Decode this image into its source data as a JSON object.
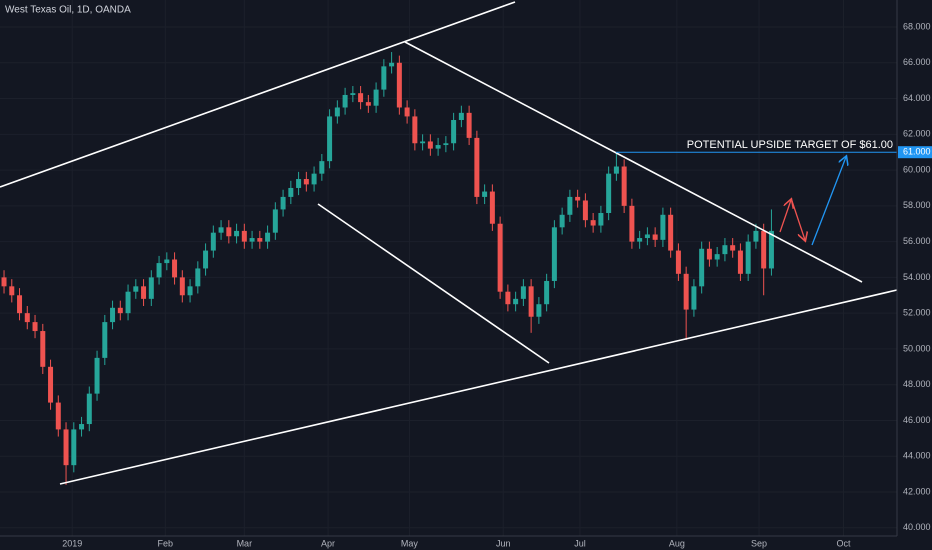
{
  "chart_data": {
    "type": "candlestick",
    "title": "West Texas Oil, 1D, OANDA",
    "up_color": "#26a69a",
    "down_color": "#ef5350",
    "grid": true,
    "categories": [
      null,
      null,
      null,
      null,
      null,
      null,
      null,
      null,
      null,
      null,
      null,
      null,
      null,
      null,
      null,
      null,
      null,
      null,
      null,
      null,
      null,
      null,
      null,
      null,
      null,
      null,
      null,
      null,
      null,
      null,
      null,
      null,
      null,
      null,
      null,
      null,
      null,
      null,
      null,
      null,
      null,
      null,
      null,
      null,
      null,
      null,
      null,
      null,
      null,
      null,
      null,
      null,
      null,
      null,
      null,
      null,
      null,
      null,
      null,
      null,
      null,
      null,
      null,
      null,
      null,
      null,
      null,
      null,
      null,
      null,
      null,
      null,
      null,
      null,
      null,
      null,
      null,
      null,
      null,
      null,
      null,
      null,
      null,
      null,
      null,
      null,
      null,
      null,
      null,
      null,
      null,
      null,
      null,
      null,
      null,
      null,
      null,
      null,
      null,
      null
    ],
    "open": [
      54,
      53.5,
      53,
      52,
      51.5,
      51,
      49,
      47,
      45.5,
      43.5,
      45.5,
      45.8,
      47.5,
      49.5,
      51.5,
      52.3,
      52,
      53.2,
      53.5,
      52.8,
      54,
      54.8,
      55,
      54,
      53,
      53.5,
      54.5,
      55.5,
      56.5,
      56.8,
      56.3,
      56.6,
      56,
      56.2,
      56,
      56.5,
      57.8,
      58.5,
      59,
      59.5,
      59.2,
      59.8,
      60.5,
      63,
      63.5,
      64.2,
      64.3,
      63.8,
      63.6,
      64.5,
      65.8,
      66,
      63.5,
      63,
      61.5,
      61.6,
      61.2,
      61.4,
      61.5,
      62.8,
      63.2,
      61.8,
      58.5,
      58.8,
      57,
      53.2,
      52.5,
      52.8,
      53.5,
      51.8,
      52.5,
      53.8,
      56.8,
      57.5,
      58.5,
      58.3,
      57.2,
      56.9,
      57.6,
      59.8,
      60.2,
      58,
      56,
      56.2,
      56.4,
      56.1,
      57.5,
      55.5,
      54.2,
      52.2,
      53.5,
      55.6,
      55,
      55.3,
      55.8,
      55.5,
      54.2,
      56,
      56.6,
      54.5
    ],
    "high": [
      54.4,
      53.9,
      53.4,
      52.4,
      51.9,
      51.4,
      49.4,
      47.4,
      45.9,
      45.9,
      46.2,
      47.9,
      49.9,
      51.9,
      52.7,
      52.7,
      53.6,
      53.9,
      53.9,
      54.4,
      55.2,
      55.4,
      55.4,
      54.4,
      53.9,
      54.9,
      55.9,
      56.9,
      57.2,
      57.2,
      57,
      57,
      56.6,
      56.6,
      56.9,
      58.2,
      58.9,
      59.4,
      59.9,
      59.9,
      60.2,
      60.9,
      63.4,
      63.9,
      64.6,
      64.7,
      64.7,
      64.2,
      64.9,
      66.2,
      66.6,
      66.4,
      63.9,
      63.4,
      62,
      62,
      61.8,
      61.9,
      63.2,
      63.6,
      63.6,
      62.2,
      59.2,
      59.2,
      57.4,
      53.6,
      53.2,
      53.9,
      53.9,
      52.9,
      54.2,
      57.2,
      57.9,
      58.9,
      58.9,
      58.7,
      57.6,
      58,
      60.2,
      61,
      60.6,
      58.4,
      56.6,
      56.8,
      56.8,
      57.9,
      57.9,
      55.9,
      54.6,
      53.9,
      56,
      56,
      55.7,
      56.2,
      56.2,
      55.9,
      56.4,
      57,
      57,
      57.8
    ],
    "low": [
      53.1,
      52.6,
      51.6,
      51.1,
      50.6,
      48.6,
      46.6,
      45.1,
      42.4,
      43.1,
      45.1,
      45.4,
      47.1,
      49.1,
      51.1,
      51.6,
      51.6,
      52.8,
      52.4,
      52.4,
      53.6,
      54.4,
      53.6,
      52.6,
      52.6,
      53.1,
      54.1,
      55.1,
      56.1,
      55.9,
      55.9,
      55.6,
      55.6,
      55.6,
      55.6,
      56.1,
      57.4,
      58.1,
      58.6,
      58.8,
      58.8,
      59.4,
      60.1,
      62.6,
      63.1,
      63.8,
      63.4,
      63.2,
      63.2,
      64.1,
      65.4,
      63.1,
      62.6,
      61.1,
      61.1,
      60.8,
      60.8,
      61,
      61.1,
      62.4,
      61.4,
      58.1,
      58.1,
      56.6,
      52.8,
      52.1,
      52.1,
      52.4,
      50.9,
      51.4,
      52.1,
      53.4,
      56.4,
      57.1,
      57.9,
      56.8,
      56.5,
      56.5,
      57.2,
      59.4,
      57.6,
      55.6,
      55.6,
      55.8,
      55.7,
      55.7,
      55.1,
      53.8,
      50.5,
      51.8,
      53.1,
      54.6,
      54.6,
      54.9,
      55.1,
      53.8,
      53.8,
      55.6,
      53,
      54.1
    ],
    "close": [
      53.5,
      53,
      52,
      51.5,
      51,
      49,
      47,
      45.5,
      43.5,
      45.5,
      45.8,
      47.5,
      49.5,
      51.5,
      52.3,
      52,
      53.2,
      53.5,
      52.8,
      54,
      54.8,
      55,
      54,
      53,
      53.5,
      54.5,
      55.5,
      56.5,
      56.8,
      56.3,
      56.6,
      56,
      56.2,
      56,
      56.5,
      57.8,
      58.5,
      59,
      59.5,
      59.2,
      59.8,
      60.5,
      63,
      63.5,
      64.2,
      64.3,
      63.8,
      63.6,
      64.5,
      65.8,
      66,
      63.5,
      63,
      61.5,
      61.6,
      61.2,
      61.4,
      61.5,
      62.8,
      63.2,
      61.8,
      58.5,
      58.8,
      57,
      53.2,
      52.5,
      52.8,
      53.5,
      51.8,
      52.5,
      53.8,
      56.8,
      57.5,
      58.5,
      58.3,
      57.2,
      56.9,
      57.6,
      59.8,
      60.2,
      58,
      56,
      56.2,
      56.4,
      56.1,
      57.5,
      55.5,
      54.2,
      52.2,
      53.5,
      55.6,
      55,
      55.3,
      55.8,
      55.5,
      54.2,
      56,
      56.6,
      54.5,
      56.6
    ],
    "xlim": [
      -0.52,
      115.2
    ],
    "xticks": [
      {
        "value": 8.8,
        "label": "2019"
      },
      {
        "value": 20.8,
        "label": "Feb"
      },
      {
        "value": 31,
        "label": "Mar"
      },
      {
        "value": 41.8,
        "label": "Apr"
      },
      {
        "value": 52.3,
        "label": "May"
      },
      {
        "value": 64.4,
        "label": "Jun"
      },
      {
        "value": 74.3,
        "label": "Jul"
      },
      {
        "value": 86.8,
        "label": "Aug"
      },
      {
        "value": 97.4,
        "label": "Sep"
      },
      {
        "value": 108.3,
        "label": "Oct"
      }
    ],
    "ylim": [
      39.54,
      69.51
    ],
    "yticks": [
      {
        "value": 40,
        "label": "40.000"
      },
      {
        "value": 42,
        "label": "42.000"
      },
      {
        "value": 44,
        "label": "44.000"
      },
      {
        "value": 46,
        "label": "46.000"
      },
      {
        "value": 48,
        "label": "48.000"
      },
      {
        "value": 50,
        "label": "50.000"
      },
      {
        "value": 52,
        "label": "52.000"
      },
      {
        "value": 54,
        "label": "54.000"
      },
      {
        "value": 56,
        "label": "56.000"
      },
      {
        "value": 58,
        "label": "58.000"
      },
      {
        "value": 60,
        "label": "60.000"
      },
      {
        "value": 62,
        "label": "62.000"
      },
      {
        "value": 64,
        "label": "64.000"
      },
      {
        "value": 66,
        "label": "66.000"
      },
      {
        "value": 68,
        "label": "68.000"
      }
    ],
    "target": {
      "text": "POTENTIAL UPSIDE TARGET OF $61.00",
      "value": 61,
      "label": "61.000",
      "color": "#2196f3"
    }
  }
}
